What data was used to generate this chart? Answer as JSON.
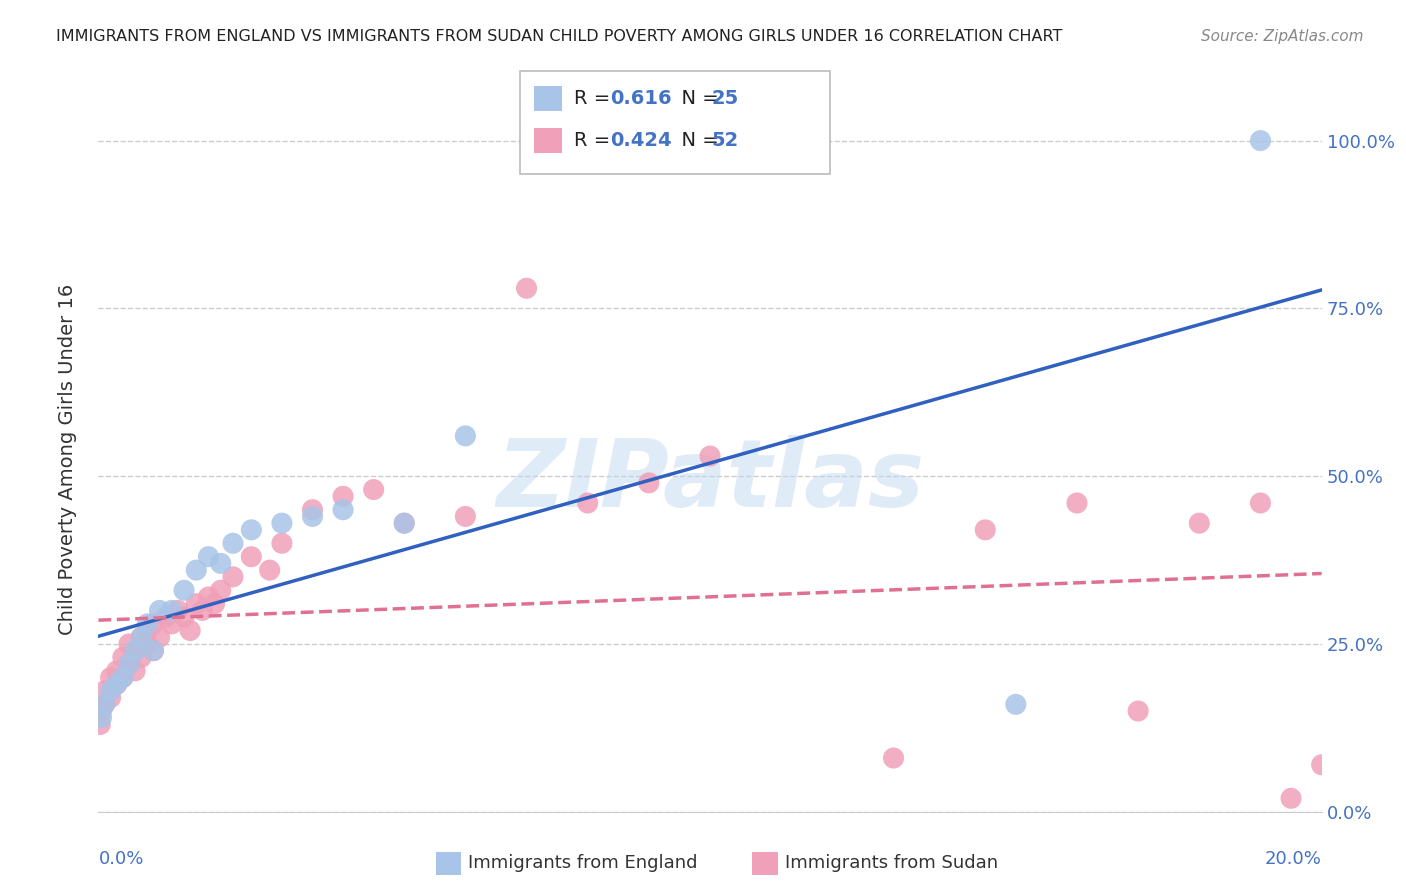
{
  "title": "IMMIGRANTS FROM ENGLAND VS IMMIGRANTS FROM SUDAN CHILD POVERTY AMONG GIRLS UNDER 16 CORRELATION CHART",
  "source": "Source: ZipAtlas.com",
  "ylabel": "Child Poverty Among Girls Under 16",
  "watermark": "ZIPatlas",
  "england_R": 0.616,
  "england_N": 25,
  "sudan_R": 0.424,
  "sudan_N": 52,
  "england_scatter_color": "#a8c4e8",
  "sudan_scatter_color": "#f0a0b8",
  "england_line_color": "#3060c0",
  "sudan_line_color": "#e07090",
  "blue_text_color": "#4472c4",
  "title_color": "#222222",
  "source_color": "#888888",
  "x_min": 0.0,
  "x_max": 0.2,
  "y_min": 0.0,
  "y_max": 1.05,
  "grid_color": "#cccccc",
  "background_color": "#ffffff",
  "england_x": [
    0.0005,
    0.001,
    0.002,
    0.003,
    0.004,
    0.005,
    0.006,
    0.007,
    0.008,
    0.009,
    0.01,
    0.012,
    0.014,
    0.016,
    0.018,
    0.02,
    0.022,
    0.025,
    0.03,
    0.035,
    0.04,
    0.05,
    0.06,
    0.15,
    0.19
  ],
  "england_y": [
    0.14,
    0.16,
    0.18,
    0.19,
    0.2,
    0.22,
    0.24,
    0.26,
    0.28,
    0.24,
    0.3,
    0.3,
    0.33,
    0.36,
    0.38,
    0.37,
    0.4,
    0.42,
    0.43,
    0.44,
    0.45,
    0.43,
    0.56,
    0.16,
    1.0
  ],
  "sudan_x": [
    0.0003,
    0.0005,
    0.001,
    0.001,
    0.002,
    0.002,
    0.003,
    0.003,
    0.004,
    0.004,
    0.005,
    0.005,
    0.006,
    0.006,
    0.007,
    0.007,
    0.008,
    0.008,
    0.009,
    0.009,
    0.01,
    0.011,
    0.012,
    0.013,
    0.014,
    0.015,
    0.016,
    0.017,
    0.018,
    0.019,
    0.02,
    0.022,
    0.025,
    0.028,
    0.03,
    0.035,
    0.04,
    0.045,
    0.05,
    0.06,
    0.07,
    0.08,
    0.09,
    0.1,
    0.13,
    0.145,
    0.16,
    0.17,
    0.18,
    0.19,
    0.195,
    0.2
  ],
  "sudan_y": [
    0.13,
    0.15,
    0.16,
    0.18,
    0.17,
    0.2,
    0.19,
    0.21,
    0.2,
    0.23,
    0.22,
    0.25,
    0.21,
    0.24,
    0.23,
    0.26,
    0.25,
    0.27,
    0.24,
    0.28,
    0.26,
    0.29,
    0.28,
    0.3,
    0.29,
    0.27,
    0.31,
    0.3,
    0.32,
    0.31,
    0.33,
    0.35,
    0.38,
    0.36,
    0.4,
    0.45,
    0.47,
    0.48,
    0.43,
    0.44,
    0.78,
    0.46,
    0.49,
    0.53,
    0.08,
    0.42,
    0.46,
    0.15,
    0.43,
    0.46,
    0.02,
    0.07
  ],
  "yticks": [
    0.0,
    0.25,
    0.5,
    0.75,
    1.0
  ],
  "ytick_labels": [
    "0.0%",
    "25.0%",
    "50.0%",
    "75.0%",
    "100.0%"
  ],
  "xticks": [
    0.0,
    0.05,
    0.1,
    0.15,
    0.2
  ],
  "xtick_label_left": "0.0%",
  "xtick_label_right": "20.0%",
  "bottom_legend_england": "Immigrants from England",
  "bottom_legend_sudan": "Immigrants from Sudan"
}
